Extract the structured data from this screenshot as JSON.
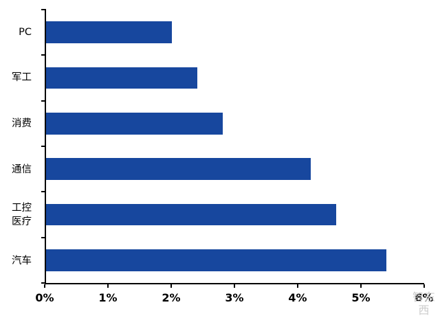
{
  "chart_data": {
    "type": "bar",
    "orientation": "horizontal",
    "categories": [
      "PC",
      "军工",
      "消费",
      "通信",
      "工控\n医疗",
      "汽车"
    ],
    "values": [
      2.0,
      2.4,
      2.8,
      4.2,
      4.6,
      5.4
    ],
    "unit": "%",
    "x_ticks": [
      "0%",
      "1%",
      "2%",
      "3%",
      "4%",
      "5%",
      "6%"
    ],
    "xlim": [
      0,
      6
    ],
    "bar_color": "#17479E",
    "axis_color": "#000000",
    "grid": false,
    "legend": null,
    "value_labels_shown": false
  },
  "watermark": "智东西"
}
